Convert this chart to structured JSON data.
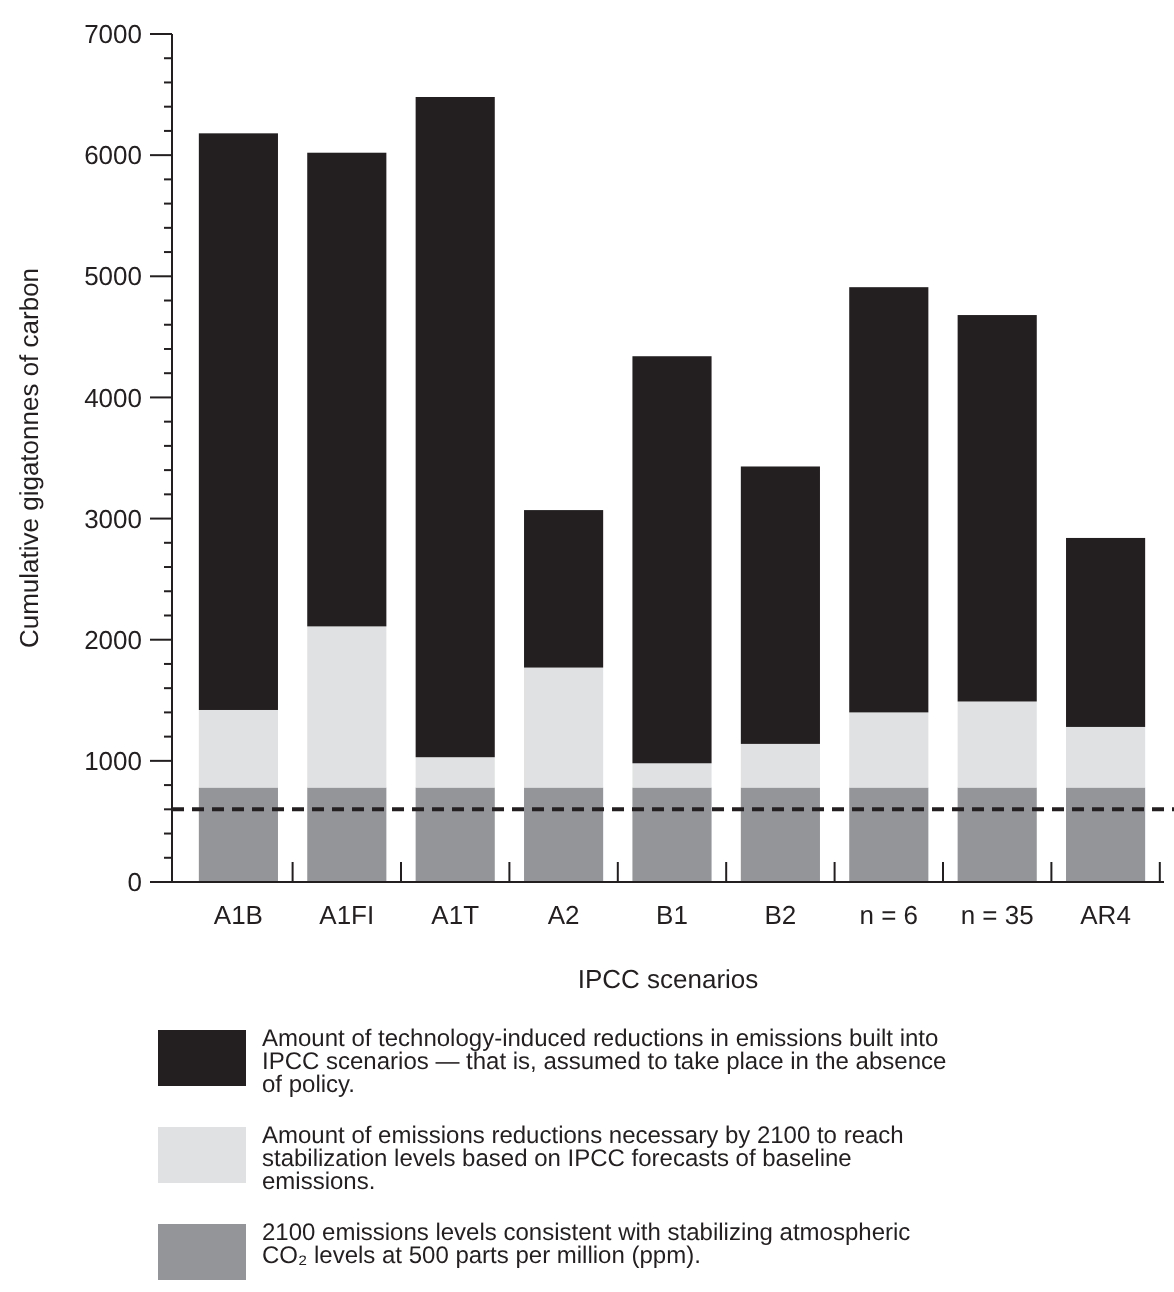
{
  "chart_data": {
    "type": "bar",
    "stacked": true,
    "xlabel": "IPCC scenarios",
    "ylabel": "Cumulative gigatonnes of carbon",
    "categories": [
      "A1B",
      "A1FI",
      "A1T",
      "A2",
      "B1",
      "B2",
      "n = 6",
      "n = 35",
      "AR4"
    ],
    "series": [
      {
        "name": "2100 emissions levels consistent with stabilizing atmospheric CO₂ levels at 500 parts per million (ppm).",
        "color": "#939598",
        "values": [
          780,
          780,
          780,
          780,
          780,
          780,
          780,
          780,
          780
        ]
      },
      {
        "name": "Amount of emissions reductions necessary by 2100 to reach stabilization levels based on IPCC forecasts of baseline emissions.",
        "color": "#e0e1e2",
        "values": [
          640,
          1330,
          250,
          990,
          200,
          360,
          620,
          710,
          500
        ]
      },
      {
        "name": "Amount of technology-induced reductions in emissions built into IPCC scenarios — that is, assumed to take place in the absence of policy.",
        "color": "#231f20",
        "values": [
          4760,
          3910,
          5450,
          1300,
          3360,
          2290,
          3510,
          3190,
          1560
        ]
      }
    ],
    "ylim": [
      0,
      7000
    ],
    "yticks": [
      0,
      {
        "value": 200,
        "label": null
      },
      {
        "value": 400,
        "label": null
      },
      {
        "value": 600,
        "label": null
      },
      {
        "value": 800,
        "label": null
      },
      1000,
      {
        "value": 1200,
        "label": null
      },
      {
        "value": 1400,
        "label": null
      },
      {
        "value": 1600,
        "label": null
      },
      {
        "value": 1800,
        "label": null
      },
      2000,
      {
        "value": 2200,
        "label": null
      },
      {
        "value": 2400,
        "label": null
      },
      {
        "value": 2600,
        "label": null
      },
      {
        "value": 2800,
        "label": null
      },
      3000,
      {
        "value": 3200,
        "label": null
      },
      {
        "value": 3400,
        "label": null
      },
      {
        "value": 3600,
        "label": null
      },
      {
        "value": 3800,
        "label": null
      },
      4000,
      {
        "value": 4200,
        "label": null
      },
      {
        "value": 4400,
        "label": null
      },
      {
        "value": 4600,
        "label": null
      },
      {
        "value": 4800,
        "label": null
      },
      5000,
      {
        "value": 5200,
        "label": null
      },
      {
        "value": 5400,
        "label": null
      },
      {
        "value": 5600,
        "label": null
      },
      {
        "value": 5800,
        "label": null
      },
      6000,
      {
        "value": 6200,
        "label": null
      },
      {
        "value": 6400,
        "label": null
      },
      {
        "value": 6600,
        "label": null
      },
      {
        "value": 6800,
        "label": null
      },
      7000
    ],
    "ref_lines": [
      {
        "axis": "y",
        "value": 600,
        "color": "#231f20",
        "line_style": "dashed"
      }
    ],
    "grid": false,
    "legend": "bottom"
  }
}
